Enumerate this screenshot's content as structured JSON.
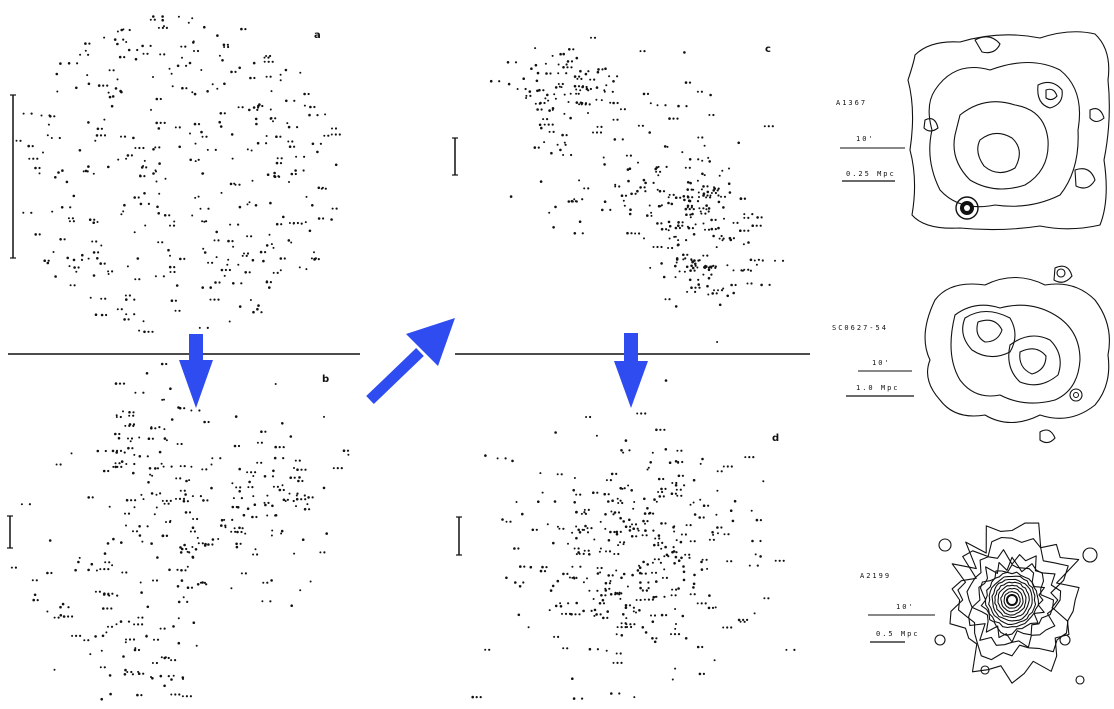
{
  "panels": [
    {
      "id": "a",
      "label": "a",
      "dots": 340
    },
    {
      "id": "b",
      "label": "b",
      "dots": 300
    },
    {
      "id": "c",
      "label": "c",
      "dots": 320
    },
    {
      "id": "d",
      "label": "d",
      "dots": 320
    }
  ],
  "clusters": [
    {
      "name": "A1367",
      "scale_angle": "10'",
      "scale_physical": "0.25 Mpc"
    },
    {
      "name": "SC0627-54",
      "scale_angle": "10'",
      "scale_physical": "1.0 Mpc"
    },
    {
      "name": "A2199",
      "scale_angle": "10'",
      "scale_physical": "0.5 Mpc"
    }
  ],
  "colors": {
    "arrow": "#2e4cf0",
    "ink": "#111111"
  },
  "arrows": [
    "arrow-down",
    "arrow-down",
    "arrow-up-right"
  ]
}
